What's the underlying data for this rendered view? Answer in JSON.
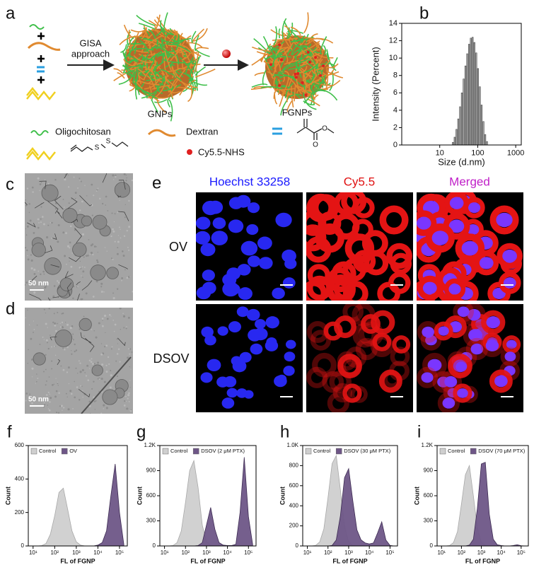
{
  "panel_labels": [
    "a",
    "b",
    "c",
    "d",
    "e",
    "f",
    "g",
    "h",
    "i"
  ],
  "scheme": {
    "gisa_label": [
      "GISA",
      "approach"
    ],
    "gnps": "GNPs",
    "fgnps": "FGNPs",
    "oligochitosan": "Oligochitosan",
    "dextran": "Dextran",
    "cy55": "Cy5.5-NHS",
    "atoms": [
      "S",
      "S",
      "O",
      "O"
    ]
  },
  "tem_scale_bars": [
    "50 nm",
    "50 nm"
  ],
  "microscopy": {
    "columns": [
      "Hoechst 33258",
      "Cy5.5",
      "Merged"
    ],
    "rows": [
      "OV",
      "DSOV"
    ]
  },
  "chart_data": [
    {
      "type": "histogram",
      "ylabel": "Intensity (Percent)",
      "xlabel": "Size (d.nm)",
      "xscale": "log",
      "xlim": [
        1,
        1400
      ],
      "xticks": [
        10,
        100,
        1000
      ],
      "ylim": [
        0,
        14
      ],
      "yticks": [
        0,
        2,
        4,
        6,
        8,
        10,
        12,
        14
      ],
      "color": "#a8a8a8",
      "bins": [
        21,
        23.4,
        26.1,
        29.1,
        32.5,
        36.2,
        40.4,
        45.0,
        50.2,
        56.0,
        62.4,
        69.6,
        77.6,
        86.5,
        96.5,
        107.6,
        120.0,
        133.8,
        149.2,
        166.3,
        185.4
      ],
      "values": [
        0.3,
        0.9,
        1.8,
        3.0,
        4.4,
        6.0,
        7.6,
        9.1,
        10.5,
        11.6,
        12.3,
        12.4,
        11.8,
        10.6,
        8.8,
        6.7,
        4.6,
        2.7,
        1.2,
        0.4
      ]
    },
    {
      "type": "area",
      "xscale": "log",
      "xlim": [
        6,
        230000
      ],
      "xticks": [
        {
          "value": 10,
          "label": "10¹"
        },
        {
          "value": 100,
          "label": "10²"
        },
        {
          "value": 1000,
          "label": "10³"
        },
        {
          "value": 10000,
          "label": "10⁴"
        },
        {
          "value": 100000,
          "label": "10⁵"
        }
      ],
      "ylim": [
        0,
        600
      ],
      "yticks": [
        0,
        200,
        400,
        600
      ],
      "xlabel": "FL of FGNP",
      "ylabel": "Count",
      "legend": "top-left",
      "x": [
        6.3,
        10,
        15.8,
        25.1,
        39.8,
        63.1,
        100,
        158,
        251,
        398,
        631,
        1000,
        1585,
        2512,
        3981,
        6310,
        10000,
        15849,
        25119,
        39811,
        63096,
        100000,
        158489
      ],
      "series": [
        {
          "name": "Control",
          "color": "#cfcfcf",
          "values": [
            0,
            0,
            0,
            2,
            15,
            70,
            180,
            320,
            345,
            220,
            90,
            25,
            5,
            0,
            0,
            0,
            0,
            0,
            0,
            0,
            0,
            0,
            0
          ]
        },
        {
          "name": "OV",
          "color": "#6e5687",
          "values": [
            0,
            0,
            0,
            0,
            0,
            0,
            0,
            0,
            0,
            0,
            0,
            0,
            0,
            0,
            0,
            0,
            5,
            20,
            90,
            300,
            490,
            200,
            10
          ]
        }
      ]
    },
    {
      "type": "area",
      "xscale": "log",
      "xlim": [
        6,
        230000
      ],
      "xticks": [
        {
          "value": 10,
          "label": "10¹"
        },
        {
          "value": 100,
          "label": "10²"
        },
        {
          "value": 1000,
          "label": "10³"
        },
        {
          "value": 10000,
          "label": "10⁴"
        },
        {
          "value": 100000,
          "label": "10⁵"
        }
      ],
      "ylim": [
        0,
        1200
      ],
      "yticks": [
        0,
        300,
        600,
        900,
        {
          "value": 1200,
          "label": "1.2K"
        }
      ],
      "xlabel": "FL of FGNP",
      "ylabel": "Count",
      "legend": "top-left",
      "x": [
        6.3,
        10,
        15.8,
        25.1,
        39.8,
        63.1,
        100,
        158,
        251,
        398,
        631,
        1000,
        1585,
        2512,
        3981,
        6310,
        10000,
        15849,
        25119,
        39811,
        63096,
        100000,
        158489
      ],
      "series": [
        {
          "name": "Control",
          "color": "#cfcfcf",
          "values": [
            0,
            0,
            0,
            5,
            40,
            180,
            520,
            900,
            1020,
            700,
            250,
            50,
            10,
            0,
            0,
            0,
            0,
            0,
            0,
            0,
            0,
            0,
            0
          ]
        },
        {
          "name": "DSOV (2 μM PTX)",
          "color": "#6e5687",
          "values": [
            0,
            0,
            0,
            0,
            0,
            0,
            0,
            0,
            0,
            5,
            40,
            250,
            460,
            200,
            40,
            10,
            5,
            5,
            20,
            400,
            1060,
            350,
            20
          ]
        }
      ]
    },
    {
      "type": "area",
      "xscale": "log",
      "xlim": [
        6,
        230000
      ],
      "xticks": [
        {
          "value": 10,
          "label": "10¹"
        },
        {
          "value": 100,
          "label": "10²"
        },
        {
          "value": 1000,
          "label": "10³"
        },
        {
          "value": 10000,
          "label": "10⁴"
        },
        {
          "value": 100000,
          "label": "10⁵"
        }
      ],
      "ylim": [
        0,
        1000
      ],
      "yticks": [
        0,
        200,
        400,
        600,
        800,
        {
          "value": 1000,
          "label": "1.0K"
        }
      ],
      "xlabel": "FL of FGNP",
      "ylabel": "Count",
      "legend": "top-left",
      "x": [
        6.3,
        10,
        15.8,
        25.1,
        39.8,
        63.1,
        100,
        158,
        251,
        398,
        631,
        1000,
        1585,
        2512,
        3981,
        6310,
        10000,
        15849,
        25119,
        39811,
        63096,
        100000,
        158489
      ],
      "series": [
        {
          "name": "Control",
          "color": "#cfcfcf",
          "values": [
            0,
            0,
            0,
            5,
            40,
            170,
            480,
            820,
            900,
            560,
            200,
            40,
            5,
            0,
            0,
            0,
            0,
            0,
            0,
            0,
            0,
            0,
            0
          ]
        },
        {
          "name": "DSOV (30 μM PTX)",
          "color": "#6e5687",
          "values": [
            0,
            0,
            0,
            0,
            0,
            0,
            0,
            5,
            60,
            300,
            680,
            770,
            450,
            160,
            60,
            30,
            20,
            30,
            130,
            240,
            60,
            5,
            0
          ]
        }
      ]
    },
    {
      "type": "area",
      "xscale": "log",
      "xlim": [
        6,
        230000
      ],
      "xticks": [
        {
          "value": 10,
          "label": "10¹"
        },
        {
          "value": 100,
          "label": "10²"
        },
        {
          "value": 1000,
          "label": "10³"
        },
        {
          "value": 10000,
          "label": "10⁴"
        },
        {
          "value": 100000,
          "label": "10⁵"
        }
      ],
      "ylim": [
        0,
        1200
      ],
      "yticks": [
        0,
        300,
        600,
        900,
        {
          "value": 1200,
          "label": "1.2K"
        }
      ],
      "xlabel": "FL of FGNP",
      "ylabel": "Count",
      "legend": "top-left",
      "x": [
        6.3,
        10,
        15.8,
        25.1,
        39.8,
        63.1,
        100,
        158,
        251,
        398,
        631,
        1000,
        1585,
        2512,
        3981,
        6310,
        10000,
        15849,
        25119,
        39811,
        63096,
        100000,
        158489
      ],
      "series": [
        {
          "name": "Control",
          "color": "#cfcfcf",
          "values": [
            0,
            0,
            0,
            5,
            40,
            170,
            500,
            850,
            960,
            600,
            220,
            45,
            8,
            0,
            0,
            0,
            0,
            0,
            0,
            0,
            0,
            0,
            0
          ]
        },
        {
          "name": "DSOV (70 μM PTX)",
          "color": "#6e5687",
          "values": [
            0,
            0,
            0,
            0,
            0,
            0,
            0,
            0,
            10,
            80,
            450,
            980,
            1000,
            380,
            80,
            15,
            5,
            0,
            0,
            5,
            15,
            3,
            0
          ]
        }
      ]
    }
  ]
}
